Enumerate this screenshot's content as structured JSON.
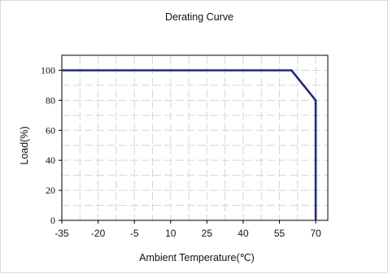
{
  "chart_data": {
    "type": "line",
    "title": "Derating Curve",
    "xlabel": "Ambient Temperature(℃)",
    "ylabel": "Load(%)",
    "x_ticks": [
      -35,
      -20,
      -5,
      10,
      25,
      40,
      55,
      70
    ],
    "y_ticks": [
      0,
      20,
      40,
      60,
      80,
      100
    ],
    "xlim": [
      -35,
      75
    ],
    "ylim": [
      0,
      110
    ],
    "grid": true,
    "legend": "none",
    "series": [
      {
        "color": "#1f2a78",
        "x": [
          -35,
          60,
          70,
          70
        ],
        "y": [
          100,
          100,
          80,
          0
        ]
      }
    ]
  }
}
